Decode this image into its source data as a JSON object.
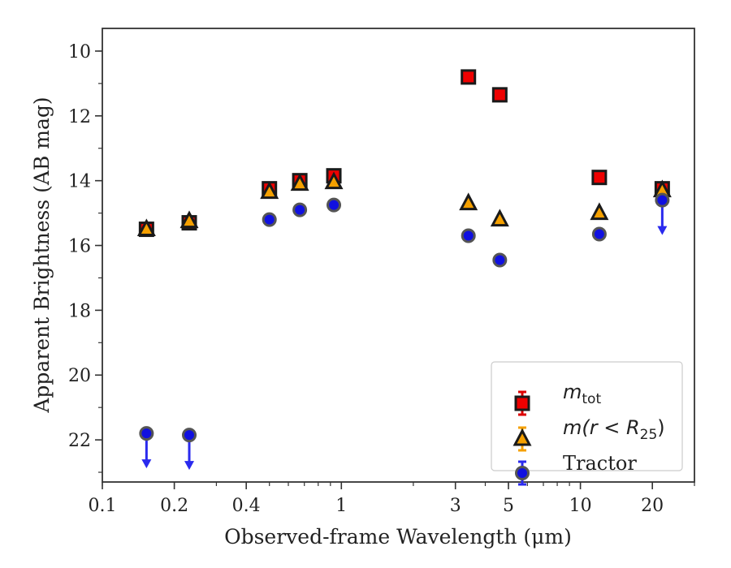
{
  "chart_data": {
    "type": "scatter",
    "xlabel": "Observed-frame Wavelength (μm)",
    "ylabel": "Apparent Brightness (AB mag)",
    "xscale": "log",
    "xlim": [
      0.1,
      30
    ],
    "ylim": [
      23.3,
      9.3
    ],
    "y_inverted": true,
    "xticks": [
      0.1,
      0.2,
      0.4,
      1,
      3,
      5,
      10,
      20
    ],
    "xtick_labels": [
      "0.1",
      "0.2",
      "0.4",
      "1",
      "3",
      "5",
      "10",
      "20"
    ],
    "yticks": [
      10,
      12,
      14,
      16,
      18,
      20,
      22
    ],
    "ytick_labels": [
      "10",
      "12",
      "14",
      "16",
      "18",
      "20",
      "22"
    ],
    "legend_position": "lower-right",
    "series": [
      {
        "key": "mtot",
        "label_main": "m",
        "label_sub": "tot",
        "marker": "square",
        "color": "#ee0000",
        "error_color": "#dd0000",
        "points": [
          {
            "x": 0.153,
            "y": 15.5
          },
          {
            "x": 0.231,
            "y": 15.3
          },
          {
            "x": 0.5,
            "y": 14.25
          },
          {
            "x": 0.67,
            "y": 14.0
          },
          {
            "x": 0.93,
            "y": 13.85
          },
          {
            "x": 3.4,
            "y": 10.8
          },
          {
            "x": 4.6,
            "y": 11.35
          },
          {
            "x": 12.0,
            "y": 13.9
          },
          {
            "x": 22.0,
            "y": 14.25
          }
        ]
      },
      {
        "key": "mr25",
        "label_main": "m(r < R",
        "label_sub": "25",
        "label_end": ")",
        "marker": "triangle",
        "color": "#f5a000",
        "error_color": "#f5a000",
        "points": [
          {
            "x": 0.153,
            "y": 15.5
          },
          {
            "x": 0.231,
            "y": 15.25
          },
          {
            "x": 0.5,
            "y": 14.35
          },
          {
            "x": 0.67,
            "y": 14.1
          },
          {
            "x": 0.93,
            "y": 14.05
          },
          {
            "x": 3.4,
            "y": 14.7
          },
          {
            "x": 4.6,
            "y": 15.2
          },
          {
            "x": 12.0,
            "y": 15.0
          },
          {
            "x": 22.0,
            "y": 14.3
          }
        ]
      },
      {
        "key": "tractor",
        "label_main": "Tractor",
        "marker": "circle",
        "color": "#1010e0",
        "error_color": "#2a2aee",
        "points": [
          {
            "x": 0.153,
            "y": 21.8,
            "upper_limit": true
          },
          {
            "x": 0.231,
            "y": 21.85,
            "upper_limit": true
          },
          {
            "x": 0.5,
            "y": 15.2
          },
          {
            "x": 0.67,
            "y": 14.9
          },
          {
            "x": 0.93,
            "y": 14.75
          },
          {
            "x": 3.4,
            "y": 15.7
          },
          {
            "x": 4.6,
            "y": 16.45
          },
          {
            "x": 12.0,
            "y": 15.65
          },
          {
            "x": 22.0,
            "y": 14.6,
            "upper_limit": true
          }
        ]
      }
    ]
  }
}
